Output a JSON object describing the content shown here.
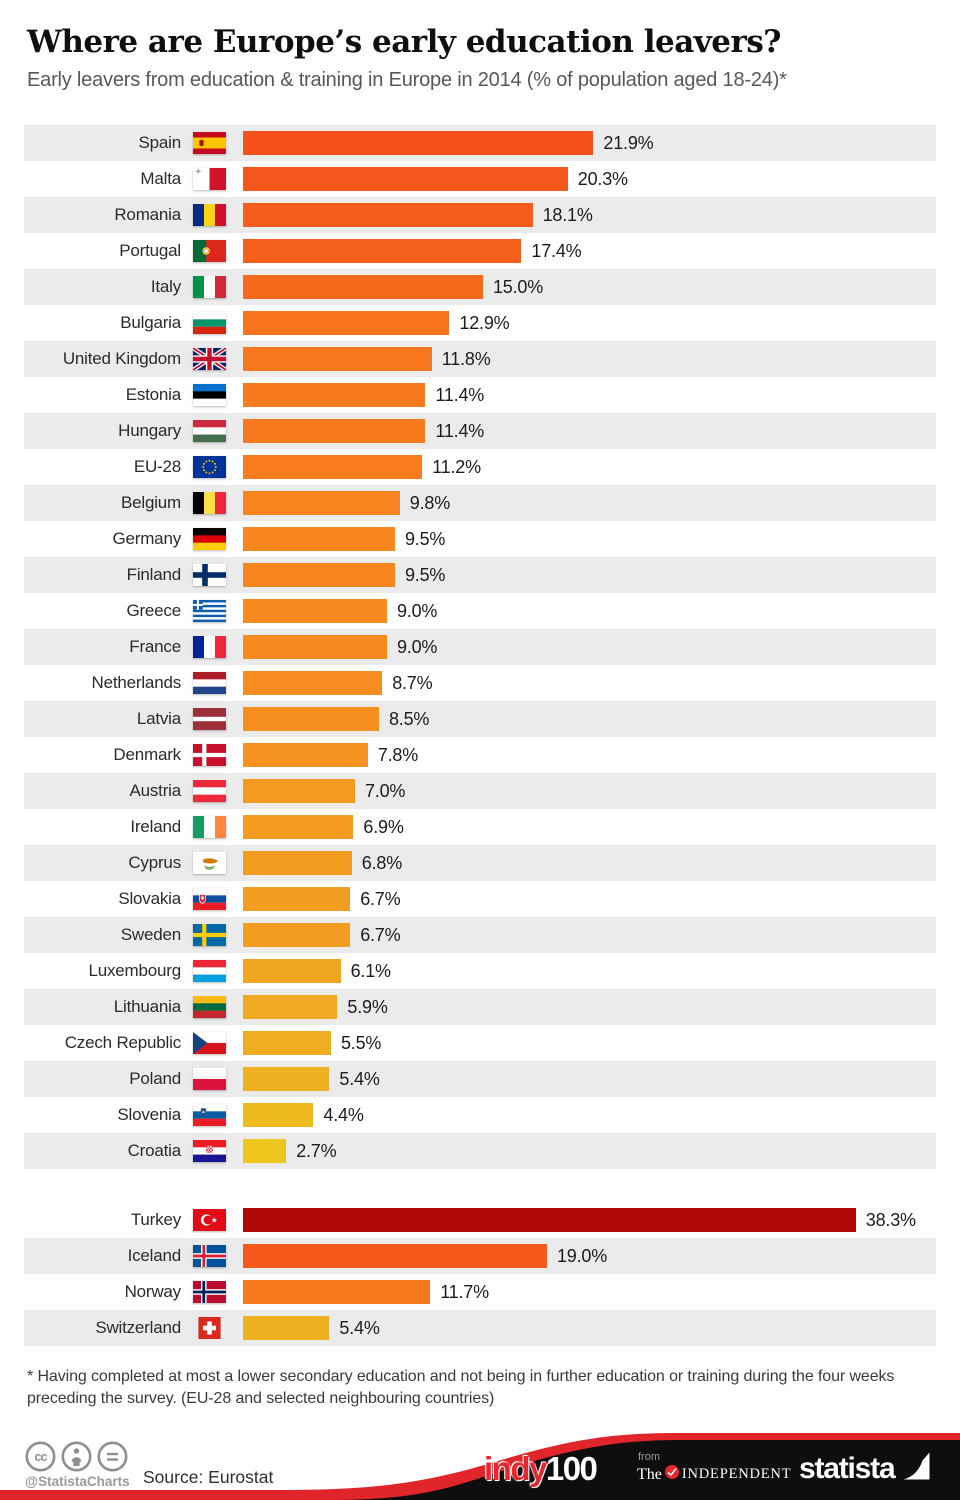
{
  "header": {
    "title": "Where are Europe’s early education leavers?",
    "subtitle": "Early leavers from education & training in Europe in 2014 (% of population aged 18-24)*"
  },
  "chart_data": {
    "type": "bar",
    "orientation": "horizontal",
    "unit": "%",
    "xlim": [
      0,
      40
    ],
    "title": "Early leavers from education & training in Europe in 2014 (% of population aged 18-24)*",
    "groups": [
      [
        {
          "country": "Spain",
          "value": 21.9,
          "label": "21.9%",
          "color": "#f4511c",
          "flag": "es"
        },
        {
          "country": "Malta",
          "value": 20.3,
          "label": "20.3%",
          "color": "#f4561c",
          "flag": "mt"
        },
        {
          "country": "Romania",
          "value": 18.1,
          "label": "18.1%",
          "color": "#f55d1d",
          "flag": "ro"
        },
        {
          "country": "Portugal",
          "value": 17.4,
          "label": "17.4%",
          "color": "#f5601d",
          "flag": "pt"
        },
        {
          "country": "Italy",
          "value": 15.0,
          "label": "15.0%",
          "color": "#f66a1d",
          "flag": "it"
        },
        {
          "country": "Bulgaria",
          "value": 12.9,
          "label": "12.9%",
          "color": "#f7731e",
          "flag": "bg"
        },
        {
          "country": "United Kingdom",
          "value": 11.8,
          "label": "11.8%",
          "color": "#f7781e",
          "flag": "gb"
        },
        {
          "country": "Estonia",
          "value": 11.4,
          "label": "11.4%",
          "color": "#f77b1e",
          "flag": "ee"
        },
        {
          "country": "Hungary",
          "value": 11.4,
          "label": "11.4%",
          "color": "#f77b1e",
          "flag": "hu"
        },
        {
          "country": "EU-28",
          "value": 11.2,
          "label": "11.2%",
          "color": "#f87c1e",
          "flag": "eu"
        },
        {
          "country": "Belgium",
          "value": 9.8,
          "label": "9.8%",
          "color": "#f8841f",
          "flag": "be"
        },
        {
          "country": "Germany",
          "value": 9.5,
          "label": "9.5%",
          "color": "#f8861f",
          "flag": "de"
        },
        {
          "country": "Finland",
          "value": 9.5,
          "label": "9.5%",
          "color": "#f8861f",
          "flag": "fi"
        },
        {
          "country": "Greece",
          "value": 9.0,
          "label": "9.0%",
          "color": "#f8891f",
          "flag": "gr"
        },
        {
          "country": "France",
          "value": 9.0,
          "label": "9.0%",
          "color": "#f8891f",
          "flag": "fr"
        },
        {
          "country": "Netherlands",
          "value": 8.7,
          "label": "8.7%",
          "color": "#f78c20",
          "flag": "nl"
        },
        {
          "country": "Latvia",
          "value": 8.5,
          "label": "8.5%",
          "color": "#f78e20",
          "flag": "lv"
        },
        {
          "country": "Denmark",
          "value": 7.8,
          "label": "7.8%",
          "color": "#f69320",
          "flag": "dk"
        },
        {
          "country": "Austria",
          "value": 7.0,
          "label": "7.0%",
          "color": "#f49a20",
          "flag": "at"
        },
        {
          "country": "Ireland",
          "value": 6.9,
          "label": "6.9%",
          "color": "#f49c20",
          "flag": "ie"
        },
        {
          "country": "Cyprus",
          "value": 6.8,
          "label": "6.8%",
          "color": "#f39d20",
          "flag": "cy"
        },
        {
          "country": "Slovakia",
          "value": 6.7,
          "label": "6.7%",
          "color": "#f39e20",
          "flag": "sk"
        },
        {
          "country": "Sweden",
          "value": 6.7,
          "label": "6.7%",
          "color": "#f39e20",
          "flag": "se"
        },
        {
          "country": "Luxembourg",
          "value": 6.1,
          "label": "6.1%",
          "color": "#f1a621",
          "flag": "lu"
        },
        {
          "country": "Lithuania",
          "value": 5.9,
          "label": "5.9%",
          "color": "#f0a921",
          "flag": "lt"
        },
        {
          "country": "Czech Republic",
          "value": 5.5,
          "label": "5.5%",
          "color": "#efae21",
          "flag": "cz"
        },
        {
          "country": "Poland",
          "value": 5.4,
          "label": "5.4%",
          "color": "#efb021",
          "flag": "pl"
        },
        {
          "country": "Slovenia",
          "value": 4.4,
          "label": "4.4%",
          "color": "#edbb1e",
          "flag": "si"
        },
        {
          "country": "Croatia",
          "value": 2.7,
          "label": "2.7%",
          "color": "#ecc51d",
          "flag": "hr"
        }
      ],
      [
        {
          "country": "Turkey",
          "value": 38.3,
          "label": "38.3%",
          "color": "#b10808",
          "flag": "tr"
        },
        {
          "country": "Iceland",
          "value": 19.0,
          "label": "19.0%",
          "color": "#f55a1c",
          "flag": "is"
        },
        {
          "country": "Norway",
          "value": 11.7,
          "label": "11.7%",
          "color": "#f7791e",
          "flag": "no"
        },
        {
          "country": "Switzerland",
          "value": 5.4,
          "label": "5.4%",
          "color": "#efb021",
          "flag": "ch"
        }
      ]
    ]
  },
  "footnote": "* Having completed at most a lower secondary education and not being in further education or training during the four weeks preceding the survey. (EU-28 and selected neighbouring countries)",
  "footer": {
    "handle": "@StatistaCharts",
    "source": "Source: Eurostat",
    "cc_icons": [
      "cc-license-icon",
      "attribution-icon",
      "no-derivatives-icon"
    ],
    "indy_logo": {
      "indy": "indy",
      "hundred": "100"
    },
    "independent_logo": {
      "from": "from",
      "the": "The",
      "name": "INDEPENDENT"
    },
    "statista_logo": "statista"
  },
  "colors": {
    "stripe": "#ebebeb",
    "banner_black": "#0e0e0e",
    "banner_red": "#e0252b",
    "top_bar_red": "#f4511c",
    "turkey_dark_red": "#b10808",
    "low_bar_yellow": "#ecc51d"
  }
}
